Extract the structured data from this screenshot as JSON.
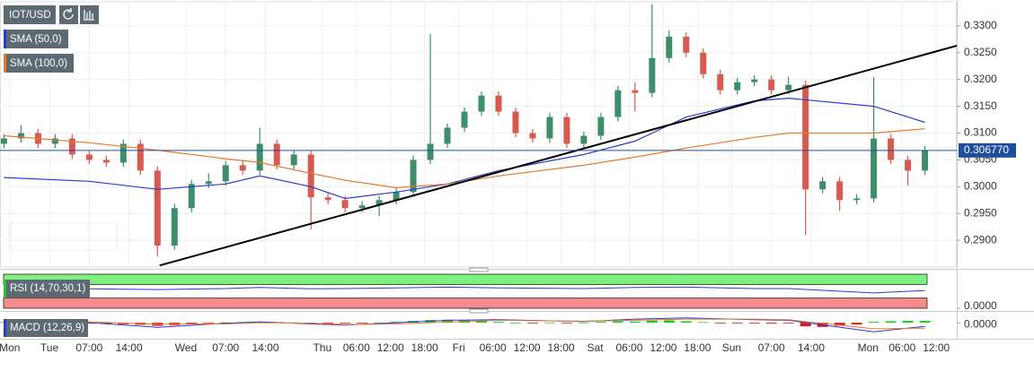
{
  "chart_data": [
    {
      "type": "candlestick",
      "title": "IOT/USD",
      "up_color": "#3e8e6c",
      "down_color": "#d65a4f",
      "xlim": [
        -8.7,
        159.6
      ],
      "ylim": [
        0.285,
        0.3345
      ],
      "xticks": [
        {
          "value": -7,
          "label": "Mon"
        },
        {
          "value": 0,
          "label": "Tue"
        },
        {
          "value": 7,
          "label": "07:00"
        },
        {
          "value": 14,
          "label": "14:00"
        },
        {
          "value": 24,
          "label": "Wed"
        },
        {
          "value": 31,
          "label": "07:00"
        },
        {
          "value": 38,
          "label": "14:00"
        },
        {
          "value": 48,
          "label": "Thu"
        },
        {
          "value": 54,
          "label": "06:00"
        },
        {
          "value": 60,
          "label": "12:00"
        },
        {
          "value": 66,
          "label": "18:00"
        },
        {
          "value": 72,
          "label": "Fri"
        },
        {
          "value": 78,
          "label": "06:00"
        },
        {
          "value": 84,
          "label": "12:00"
        },
        {
          "value": 90,
          "label": "18:00"
        },
        {
          "value": 96,
          "label": "Sat"
        },
        {
          "value": 102,
          "label": "06:00"
        },
        {
          "value": 108,
          "label": "12:00"
        },
        {
          "value": 114,
          "label": "18:00"
        },
        {
          "value": 120,
          "label": "Sun"
        },
        {
          "value": 127,
          "label": "07:00"
        },
        {
          "value": 134,
          "label": "14:00"
        },
        {
          "value": 144,
          "label": "Mon"
        },
        {
          "value": 150,
          "label": "06:00"
        },
        {
          "value": 156,
          "label": "12:00"
        }
      ],
      "yticks": [
        {
          "value": 0.29,
          "label": "0.2900"
        },
        {
          "value": 0.295,
          "label": "0.2950"
        },
        {
          "value": 0.3,
          "label": "0.3000"
        },
        {
          "value": 0.305,
          "label": "0.3050"
        },
        {
          "value": 0.31,
          "label": "0.3100"
        },
        {
          "value": 0.315,
          "label": "0.3150"
        },
        {
          "value": 0.32,
          "label": "0.3200"
        },
        {
          "value": 0.325,
          "label": "0.3250"
        },
        {
          "value": 0.33,
          "label": "0.3300"
        }
      ],
      "grid": true,
      "x": [
        -8,
        -5,
        -2,
        1,
        4,
        7,
        10,
        13,
        16,
        19,
        22,
        25,
        28,
        31,
        34,
        37,
        40,
        43,
        46,
        49,
        52,
        55,
        58,
        61,
        64,
        67,
        70,
        73,
        76,
        79,
        82,
        85,
        88,
        91,
        94,
        97,
        100,
        103,
        106,
        109,
        112,
        115,
        118,
        121,
        124,
        127,
        130,
        133,
        136,
        139,
        142,
        145,
        148,
        151,
        154
      ],
      "open": [
        0.308,
        0.309,
        0.31,
        0.308,
        0.309,
        0.306,
        0.305,
        0.3045,
        0.308,
        0.303,
        0.289,
        0.296,
        0.3005,
        0.301,
        0.304,
        0.303,
        0.308,
        0.304,
        0.306,
        0.298,
        0.2975,
        0.296,
        0.2965,
        0.2975,
        0.299,
        0.305,
        0.308,
        0.311,
        0.314,
        0.317,
        0.314,
        0.31,
        0.309,
        0.313,
        0.308,
        0.3095,
        0.313,
        0.318,
        0.3175,
        0.324,
        0.328,
        0.325,
        0.321,
        0.318,
        0.3195,
        0.32,
        0.318,
        0.319,
        0.2995,
        0.301,
        0.2975,
        0.2978,
        0.309,
        0.305,
        0.303
      ],
      "high": [
        0.3098,
        0.3115,
        0.3108,
        0.3098,
        0.3098,
        0.3068,
        0.3058,
        0.3088,
        0.3088,
        0.3038,
        0.2968,
        0.3013,
        0.3025,
        0.3048,
        0.3048,
        0.311,
        0.3088,
        0.3068,
        0.3068,
        0.2988,
        0.2983,
        0.2973,
        0.2983,
        0.2998,
        0.3058,
        0.3285,
        0.3118,
        0.3148,
        0.3178,
        0.3178,
        0.3148,
        0.3108,
        0.3138,
        0.3138,
        0.3103,
        0.3138,
        0.3188,
        0.3195,
        0.334,
        0.3292,
        0.3288,
        0.3258,
        0.3218,
        0.3203,
        0.3208,
        0.3208,
        0.3205,
        0.3198,
        0.3018,
        0.3018,
        0.2986,
        0.3205,
        0.3098,
        0.3058,
        0.3076
      ],
      "low": [
        0.3072,
        0.3082,
        0.3072,
        0.3072,
        0.3052,
        0.3042,
        0.3037,
        0.3037,
        0.3022,
        0.287,
        0.2882,
        0.2952,
        0.2997,
        0.3002,
        0.3022,
        0.3022,
        0.3032,
        0.3032,
        0.292,
        0.2967,
        0.2952,
        0.2952,
        0.2945,
        0.2967,
        0.2982,
        0.3042,
        0.3072,
        0.3102,
        0.3132,
        0.3132,
        0.3092,
        0.3082,
        0.3082,
        0.3072,
        0.3072,
        0.3087,
        0.3122,
        0.314,
        0.3167,
        0.3232,
        0.3242,
        0.3202,
        0.3172,
        0.3172,
        0.3187,
        0.3172,
        0.3172,
        0.291,
        0.2987,
        0.2955,
        0.2967,
        0.297,
        0.3042,
        0.3002,
        0.3022
      ],
      "close": [
        0.309,
        0.31,
        0.308,
        0.309,
        0.306,
        0.305,
        0.3045,
        0.308,
        0.303,
        0.289,
        0.296,
        0.3005,
        0.301,
        0.304,
        0.303,
        0.308,
        0.304,
        0.306,
        0.298,
        0.2975,
        0.296,
        0.2965,
        0.2975,
        0.299,
        0.305,
        0.308,
        0.311,
        0.314,
        0.317,
        0.314,
        0.31,
        0.309,
        0.313,
        0.308,
        0.3095,
        0.313,
        0.318,
        0.3175,
        0.324,
        0.328,
        0.325,
        0.321,
        0.318,
        0.3195,
        0.32,
        0.318,
        0.319,
        0.2995,
        0.301,
        0.2975,
        0.2978,
        0.309,
        0.305,
        0.303,
        0.3068
      ],
      "series": [
        {
          "name": "SMA (50,0)",
          "color": "#2a3bd0",
          "x": [
            -8,
            7,
            19,
            31,
            37,
            46,
            52,
            61,
            70,
            79,
            94,
            103,
            112,
            124,
            130,
            145,
            154
          ],
          "values": [
            0.3017,
            0.301,
            0.2995,
            0.3005,
            0.302,
            0.3,
            0.2978,
            0.299,
            0.3005,
            0.303,
            0.306,
            0.3085,
            0.313,
            0.316,
            0.3165,
            0.315,
            0.312
          ]
        },
        {
          "name": "SMA (100,0)",
          "color": "#e8782c",
          "x": [
            -8,
            7,
            19,
            31,
            37,
            46,
            52,
            61,
            70,
            79,
            94,
            103,
            112,
            124,
            130,
            145,
            154
          ],
          "values": [
            0.3095,
            0.3082,
            0.3068,
            0.3052,
            0.3045,
            0.3025,
            0.3012,
            0.2998,
            0.3005,
            0.302,
            0.304,
            0.3055,
            0.3072,
            0.3092,
            0.31,
            0.31,
            0.3108
          ]
        }
      ],
      "trendline": {
        "color": "#000000",
        "x": [
          19.4,
          159.6
        ],
        "values": [
          0.2853,
          0.3263
        ]
      },
      "last_price": {
        "value": 0.30677,
        "label": "0.306770",
        "color": "#1f4e9c"
      }
    },
    {
      "type": "line",
      "title": "RSI (14,70,30,1)",
      "color": "#2a3bd0",
      "ylim": [
        0,
        100
      ],
      "yticks": [
        {
          "value": 0,
          "label": "0.0000"
        }
      ],
      "bands": [
        {
          "from": 70,
          "to": 100,
          "color": "#7ef07e"
        },
        {
          "from": 0,
          "to": 30,
          "color": "#f58a8a"
        }
      ],
      "x": [
        -8,
        7,
        19,
        31,
        37,
        46,
        52,
        61,
        70,
        79,
        94,
        103,
        112,
        124,
        130,
        145,
        154
      ],
      "values": [
        60,
        57,
        55,
        58,
        61,
        57,
        58,
        60,
        62,
        60,
        58,
        61,
        62,
        58,
        58,
        45,
        52
      ]
    },
    {
      "type": "macd",
      "title": "MACD (12,26,9)",
      "ylim": [
        -0.005,
        0.003
      ],
      "yticks": [
        {
          "value": 0,
          "label": "0.0000"
        }
      ],
      "x": [
        -8,
        7,
        19,
        31,
        37,
        46,
        52,
        61,
        70,
        79,
        94,
        103,
        112,
        124,
        130,
        145,
        154
      ],
      "macd": {
        "color": "#2a3bd0",
        "values": [
          0.001,
          0.0,
          -0.0015,
          -0.0002,
          0.0003,
          -0.0004,
          -0.0008,
          0.0,
          0.0008,
          0.001,
          0.0004,
          0.0012,
          0.0016,
          0.001,
          0.0008,
          -0.003,
          -0.0012
        ]
      },
      "signal": {
        "color": "#e8782c",
        "values": [
          0.0008,
          0.0003,
          -0.0005,
          -0.0004,
          0.0,
          -0.0002,
          -0.0006,
          -0.0004,
          0.0002,
          0.0008,
          0.0005,
          0.0008,
          0.0012,
          0.0012,
          0.001,
          -0.002,
          -0.0018
        ]
      },
      "histogram": {
        "up_color": "#22c922",
        "down_color": "#d62020",
        "x": [
          -8,
          -5,
          -2,
          1,
          4,
          7,
          10,
          13,
          16,
          19,
          22,
          25,
          28,
          31,
          34,
          37,
          40,
          43,
          46,
          49,
          52,
          55,
          58,
          61,
          64,
          67,
          70,
          73,
          76,
          79,
          82,
          85,
          88,
          91,
          94,
          97,
          100,
          103,
          106,
          109,
          112,
          115,
          118,
          121,
          124,
          127,
          130,
          133,
          136,
          139,
          142,
          145,
          148,
          151,
          154
        ],
        "values": [
          0.0002,
          0.0001,
          0,
          -0.0001,
          -0.0002,
          -0.0003,
          -0.0004,
          -0.0005,
          -0.0007,
          -0.001,
          -0.0008,
          -0.0005,
          -0.0002,
          0.0001,
          0.0002,
          0.0003,
          0.0002,
          0.0001,
          -0.0002,
          -0.0003,
          -0.0002,
          -0.0001,
          0.0,
          0.0003,
          0.0006,
          0.0009,
          0.001,
          0.0008,
          0.0006,
          0.0003,
          0.0,
          -0.0001,
          0.0001,
          -0.0001,
          0.0001,
          0.0003,
          0.0005,
          0.0004,
          0.0007,
          0.0008,
          0.0005,
          0.0002,
          -0.0001,
          -0.0001,
          -0.0002,
          -0.0003,
          -0.0002,
          -0.0012,
          -0.0014,
          -0.001,
          -0.0006,
          0.0003,
          0.0005,
          0.0006,
          0.0006
        ]
      }
    }
  ]
}
